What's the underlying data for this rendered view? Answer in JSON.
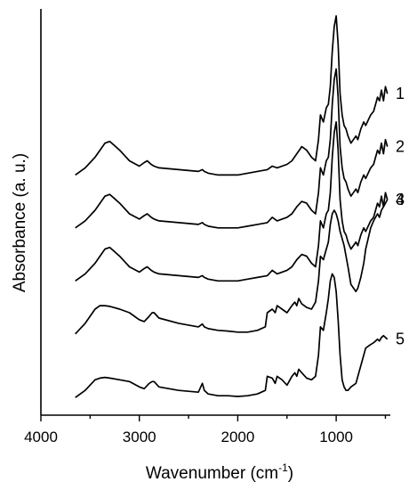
{
  "chart_data": {
    "type": "line",
    "xlabel": "Wavenumber (cm",
    "xlabel_sup": "-1",
    "xlabel_tail": ")",
    "ylabel": "Absorbance (a. u.)",
    "xlim": [
      4000,
      450
    ],
    "x_reversed": true,
    "x_ticks": [
      4000,
      3000,
      2000,
      1000
    ],
    "x_tick_labels": [
      "4000",
      "3000",
      "2000",
      "1000"
    ],
    "y_ticks_labeled": false,
    "grid": false,
    "legend": "none",
    "line_color": "#000000",
    "series": [
      {
        "name": "1",
        "x": [
          3650,
          3550,
          3450,
          3350,
          3300,
          3200,
          3100,
          3000,
          2950,
          2920,
          2880,
          2850,
          2800,
          2600,
          2400,
          2360,
          2340,
          2300,
          2200,
          2100,
          2000,
          1900,
          1800,
          1700,
          1650,
          1600,
          1500,
          1450,
          1400,
          1350,
          1300,
          1250,
          1210,
          1180,
          1160,
          1130,
          1100,
          1080,
          1060,
          1040,
          1020,
          1000,
          980,
          960,
          940,
          920,
          900,
          880,
          850,
          800,
          780,
          750,
          720,
          700,
          650,
          620,
          600,
          580,
          560,
          540,
          520,
          500,
          480
        ],
        "y": [
          0.53,
          0.55,
          0.58,
          0.62,
          0.625,
          0.6,
          0.57,
          0.555,
          0.565,
          0.57,
          0.56,
          0.555,
          0.55,
          0.545,
          0.54,
          0.545,
          0.54,
          0.535,
          0.53,
          0.53,
          0.53,
          0.535,
          0.54,
          0.545,
          0.555,
          0.55,
          0.56,
          0.57,
          0.59,
          0.61,
          0.6,
          0.58,
          0.57,
          0.63,
          0.7,
          0.68,
          0.72,
          0.73,
          0.78,
          0.88,
          0.95,
          0.98,
          0.9,
          0.76,
          0.7,
          0.67,
          0.66,
          0.64,
          0.62,
          0.64,
          0.63,
          0.66,
          0.68,
          0.67,
          0.7,
          0.71,
          0.73,
          0.75,
          0.74,
          0.77,
          0.74,
          0.78,
          0.76
        ]
      },
      {
        "name": "2",
        "x": [
          3650,
          3550,
          3450,
          3350,
          3300,
          3200,
          3100,
          3000,
          2950,
          2920,
          2880,
          2850,
          2800,
          2600,
          2400,
          2360,
          2340,
          2300,
          2200,
          2100,
          2000,
          1900,
          1800,
          1700,
          1650,
          1600,
          1500,
          1450,
          1400,
          1350,
          1300,
          1250,
          1210,
          1180,
          1160,
          1130,
          1100,
          1080,
          1060,
          1040,
          1020,
          1000,
          980,
          960,
          940,
          920,
          900,
          880,
          850,
          800,
          780,
          750,
          720,
          700,
          650,
          620,
          600,
          580,
          560,
          540,
          520,
          500,
          480
        ],
        "y": [
          0.38,
          0.4,
          0.43,
          0.47,
          0.475,
          0.45,
          0.42,
          0.405,
          0.415,
          0.42,
          0.41,
          0.405,
          0.4,
          0.395,
          0.39,
          0.395,
          0.39,
          0.385,
          0.38,
          0.38,
          0.38,
          0.385,
          0.39,
          0.395,
          0.41,
          0.4,
          0.41,
          0.42,
          0.44,
          0.455,
          0.45,
          0.43,
          0.42,
          0.48,
          0.55,
          0.53,
          0.57,
          0.58,
          0.63,
          0.73,
          0.8,
          0.83,
          0.75,
          0.61,
          0.55,
          0.52,
          0.51,
          0.49,
          0.47,
          0.49,
          0.48,
          0.51,
          0.53,
          0.52,
          0.55,
          0.56,
          0.58,
          0.6,
          0.59,
          0.62,
          0.59,
          0.63,
          0.61
        ]
      },
      {
        "name": "3",
        "x": [
          3650,
          3550,
          3450,
          3350,
          3300,
          3200,
          3100,
          3000,
          2950,
          2920,
          2880,
          2850,
          2800,
          2600,
          2400,
          2360,
          2340,
          2300,
          2200,
          2100,
          2000,
          1900,
          1800,
          1700,
          1650,
          1600,
          1500,
          1450,
          1400,
          1350,
          1300,
          1250,
          1210,
          1180,
          1160,
          1130,
          1100,
          1080,
          1060,
          1040,
          1020,
          1000,
          980,
          960,
          940,
          920,
          900,
          880,
          850,
          800,
          780,
          750,
          720,
          700,
          650,
          620,
          600,
          580,
          560,
          540,
          520,
          500,
          480
        ],
        "y": [
          0.23,
          0.25,
          0.28,
          0.32,
          0.325,
          0.3,
          0.27,
          0.255,
          0.265,
          0.27,
          0.26,
          0.255,
          0.25,
          0.245,
          0.24,
          0.245,
          0.24,
          0.235,
          0.23,
          0.23,
          0.23,
          0.235,
          0.24,
          0.245,
          0.26,
          0.25,
          0.26,
          0.27,
          0.29,
          0.305,
          0.3,
          0.28,
          0.27,
          0.33,
          0.4,
          0.38,
          0.42,
          0.43,
          0.48,
          0.58,
          0.65,
          0.68,
          0.6,
          0.46,
          0.4,
          0.37,
          0.36,
          0.34,
          0.32,
          0.34,
          0.33,
          0.36,
          0.38,
          0.37,
          0.4,
          0.41,
          0.43,
          0.45,
          0.44,
          0.47,
          0.44,
          0.48,
          0.46
        ]
      },
      {
        "name": "4",
        "x": [
          3650,
          3550,
          3450,
          3400,
          3350,
          3300,
          3200,
          3100,
          3000,
          2950,
          2900,
          2870,
          2850,
          2800,
          2600,
          2400,
          2360,
          2340,
          2300,
          2200,
          2100,
          2000,
          1900,
          1800,
          1720,
          1700,
          1650,
          1620,
          1600,
          1550,
          1500,
          1450,
          1420,
          1400,
          1380,
          1350,
          1300,
          1250,
          1210,
          1180,
          1160,
          1130,
          1100,
          1080,
          1060,
          1040,
          1020,
          1000,
          980,
          960,
          940,
          920,
          900,
          880,
          850,
          800,
          780,
          750,
          720,
          700,
          650,
          620,
          600,
          580,
          560,
          540,
          520,
          500,
          480
        ],
        "y": [
          0.08,
          0.11,
          0.15,
          0.16,
          0.16,
          0.158,
          0.15,
          0.14,
          0.12,
          0.115,
          0.13,
          0.14,
          0.14,
          0.125,
          0.11,
          0.1,
          0.108,
          0.1,
          0.095,
          0.09,
          0.088,
          0.085,
          0.085,
          0.09,
          0.1,
          0.14,
          0.15,
          0.14,
          0.16,
          0.15,
          0.14,
          0.16,
          0.17,
          0.16,
          0.18,
          0.165,
          0.155,
          0.15,
          0.17,
          0.23,
          0.3,
          0.29,
          0.32,
          0.34,
          0.39,
          0.42,
          0.43,
          0.42,
          0.4,
          0.37,
          0.35,
          0.33,
          0.3,
          0.27,
          0.22,
          0.2,
          0.21,
          0.24,
          0.28,
          0.32,
          0.38,
          0.4,
          0.41,
          0.42,
          0.41,
          0.43,
          0.44,
          0.45,
          0.46
        ]
      },
      {
        "name": "5",
        "x": [
          3650,
          3550,
          3450,
          3400,
          3350,
          3300,
          3200,
          3100,
          3000,
          2950,
          2900,
          2870,
          2850,
          2800,
          2600,
          2400,
          2360,
          2340,
          2300,
          2200,
          2100,
          2000,
          1900,
          1800,
          1720,
          1700,
          1650,
          1620,
          1600,
          1550,
          1500,
          1450,
          1420,
          1400,
          1380,
          1350,
          1300,
          1250,
          1210,
          1180,
          1160,
          1130,
          1100,
          1080,
          1060,
          1040,
          1020,
          1000,
          980,
          960,
          940,
          920,
          900,
          880,
          850,
          800,
          780,
          750,
          720,
          700,
          650,
          620,
          600,
          580,
          560,
          540,
          520,
          500,
          480
        ],
        "y": [
          -0.1,
          -0.08,
          -0.05,
          -0.045,
          -0.043,
          -0.045,
          -0.05,
          -0.055,
          -0.07,
          -0.075,
          -0.06,
          -0.055,
          -0.055,
          -0.07,
          -0.08,
          -0.085,
          -0.06,
          -0.08,
          -0.09,
          -0.095,
          -0.095,
          -0.097,
          -0.095,
          -0.09,
          -0.08,
          -0.04,
          -0.045,
          -0.06,
          -0.04,
          -0.05,
          -0.065,
          -0.04,
          -0.03,
          -0.04,
          -0.02,
          -0.03,
          -0.045,
          -0.05,
          -0.04,
          0.02,
          0.1,
          0.09,
          0.14,
          0.18,
          0.23,
          0.25,
          0.24,
          0.2,
          0.12,
          0.02,
          -0.05,
          -0.07,
          -0.08,
          -0.08,
          -0.07,
          -0.06,
          -0.04,
          -0.01,
          0.02,
          0.04,
          0.05,
          0.055,
          0.06,
          0.065,
          0.06,
          0.07,
          0.075,
          0.07,
          0.065
        ]
      }
    ]
  }
}
